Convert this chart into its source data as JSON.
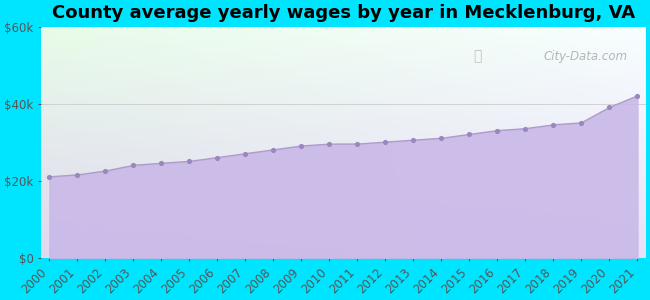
{
  "title": "County average yearly wages by year in Mecklenburg, VA",
  "years": [
    2000,
    2001,
    2002,
    2003,
    2004,
    2005,
    2006,
    2007,
    2008,
    2009,
    2010,
    2011,
    2012,
    2013,
    2014,
    2015,
    2016,
    2017,
    2018,
    2019,
    2020,
    2021
  ],
  "wages": [
    21000,
    21500,
    22500,
    24000,
    24500,
    25000,
    26000,
    27000,
    28000,
    29000,
    29500,
    29500,
    30000,
    30500,
    31000,
    32000,
    33000,
    33500,
    34500,
    35000,
    39000,
    42000
  ],
  "ylim": [
    0,
    60000
  ],
  "yticks": [
    0,
    20000,
    40000,
    60000
  ],
  "ytick_labels": [
    "$0",
    "$20k",
    "$40k",
    "$60k"
  ],
  "area_color": "#c9b8e8",
  "line_color": "#b09cc8",
  "dot_color": "#9b87c0",
  "background_outer": "#00e5ff",
  "bg_top_left": "#e8fce8",
  "bg_top_right": "#f8ffff",
  "bg_bottom_left": "#e0d8f0",
  "bg_bottom_right": "#e8e0f8",
  "watermark_text": "City-Data.com",
  "title_fontsize": 13,
  "tick_fontsize": 8.5
}
